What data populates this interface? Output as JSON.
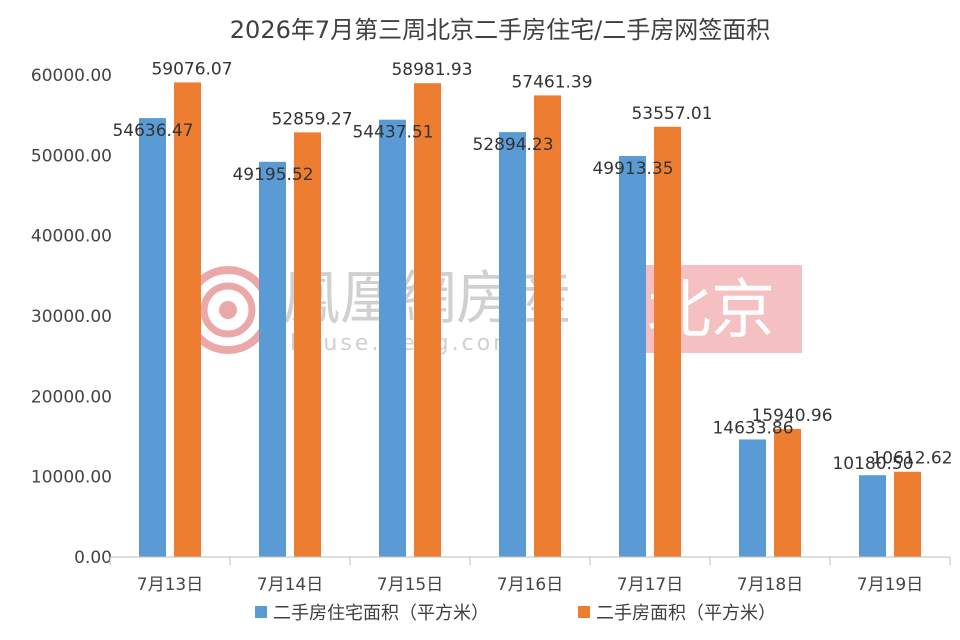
{
  "chart_data": {
    "type": "bar",
    "title": "2026年7月第三周北京二手房住宅/二手房网签面积",
    "categories": [
      "7月13日",
      "7月14日",
      "7月15日",
      "7月16日",
      "7月17日",
      "7月18日",
      "7月19日"
    ],
    "series": [
      {
        "name": "二手房住宅面积（平方米）",
        "color": "#5b9bd5",
        "values": [
          54636.47,
          49195.52,
          54437.51,
          52894.23,
          49913.35,
          14633.86,
          10180.5
        ],
        "labels": [
          "54636.47",
          "49195.52",
          "54437.51",
          "52894.23",
          "49913.35",
          "14633.86",
          "10180.50"
        ]
      },
      {
        "name": "二手房面积（平方米）",
        "color": "#ed7d31",
        "values": [
          59076.07,
          52859.27,
          58981.93,
          57461.39,
          53557.01,
          15940.96,
          10612.62
        ],
        "labels": [
          "59076.07",
          "52859.27",
          "58981.93",
          "57461.39",
          "53557.01",
          "15940.96",
          "10612.62"
        ]
      }
    ],
    "y_ticks": [
      "0.00",
      "10000.00",
      "20000.00",
      "30000.00",
      "40000.00",
      "50000.00",
      "60000.00"
    ],
    "ylim": [
      0,
      60000
    ],
    "grid": false,
    "legend_position": "bottom"
  },
  "watermark": {
    "brand": "鳳凰網房産",
    "url": "house.ifeng.com",
    "city": "北京",
    "logo_icon": "ifeng-swirl-logo-icon",
    "city_bg_color": "#f3b6b8"
  }
}
